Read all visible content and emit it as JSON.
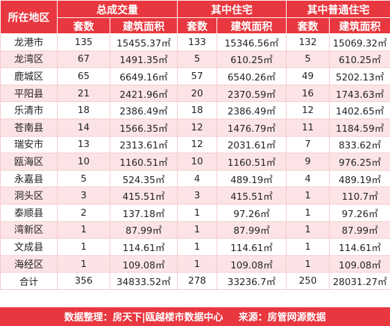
{
  "header": {
    "region_col": "所在地区",
    "groups": [
      "总成交量",
      "其中住宅",
      "其中普通住宅"
    ],
    "sub_count": "套数",
    "sub_area": "建筑面积"
  },
  "rows": [
    {
      "region": "龙港市",
      "c1": "135",
      "a1": "15455.37㎡",
      "c2": "133",
      "a2": "15346.56㎡",
      "c3": "132",
      "a3": "15069.32㎡"
    },
    {
      "region": "龙湾区",
      "c1": "67",
      "a1": "1491.35㎡",
      "c2": "5",
      "a2": "610.25㎡",
      "c3": "5",
      "a3": "610.25㎡"
    },
    {
      "region": "鹿城区",
      "c1": "65",
      "a1": "6649.16㎡",
      "c2": "57",
      "a2": "6540.26㎡",
      "c3": "49",
      "a3": "5202.13㎡"
    },
    {
      "region": "平阳县",
      "c1": "21",
      "a1": "2421.96㎡",
      "c2": "20",
      "a2": "2370.59㎡",
      "c3": "16",
      "a3": "1743.63㎡"
    },
    {
      "region": "乐清市",
      "c1": "18",
      "a1": "2386.49㎡",
      "c2": "18",
      "a2": "2386.49㎡",
      "c3": "12",
      "a3": "1402.65㎡"
    },
    {
      "region": "苍南县",
      "c1": "14",
      "a1": "1566.35㎡",
      "c2": "12",
      "a2": "1476.79㎡",
      "c3": "11",
      "a3": "1184.59㎡"
    },
    {
      "region": "瑞安市",
      "c1": "13",
      "a1": "2313.61㎡",
      "c2": "12",
      "a2": "2031.61㎡",
      "c3": "7",
      "a3": "833.62㎡"
    },
    {
      "region": "瓯海区",
      "c1": "10",
      "a1": "1160.51㎡",
      "c2": "10",
      "a2": "1160.51㎡",
      "c3": "9",
      "a3": "976.25㎡"
    },
    {
      "region": "永嘉县",
      "c1": "5",
      "a1": "524.35㎡",
      "c2": "4",
      "a2": "489.19㎡",
      "c3": "4",
      "a3": "489.19㎡"
    },
    {
      "region": "洞头区",
      "c1": "3",
      "a1": "415.51㎡",
      "c2": "3",
      "a2": "415.51㎡",
      "c3": "1",
      "a3": "110.7㎡"
    },
    {
      "region": "泰顺县",
      "c1": "2",
      "a1": "137.18㎡",
      "c2": "1",
      "a2": "97.26㎡",
      "c3": "1",
      "a3": "97.26㎡"
    },
    {
      "region": "湾新区",
      "c1": "1",
      "a1": "87.99㎡",
      "c2": "1",
      "a2": "87.99㎡",
      "c3": "1",
      "a3": "87.99㎡"
    },
    {
      "region": "文成县",
      "c1": "1",
      "a1": "114.61㎡",
      "c2": "1",
      "a2": "114.61㎡",
      "c3": "1",
      "a3": "114.61㎡"
    },
    {
      "region": "海经区",
      "c1": "1",
      "a1": "109.08㎡",
      "c2": "1",
      "a2": "109.08㎡",
      "c3": "1",
      "a3": "109.08㎡"
    }
  ],
  "total": {
    "region": "合计",
    "c1": "356",
    "a1": "34833.52㎡",
    "c2": "278",
    "a2": "33236.7㎡",
    "c3": "250",
    "a3": "28031.27㎡"
  },
  "footer": {
    "left": "数据整理：房天下|瓯越楼市数据中心",
    "right": "来源：房管网源数据"
  },
  "colors": {
    "header_bg": "#e8373f",
    "stripe": "#fce4e6",
    "header_text": "#ffffff"
  }
}
